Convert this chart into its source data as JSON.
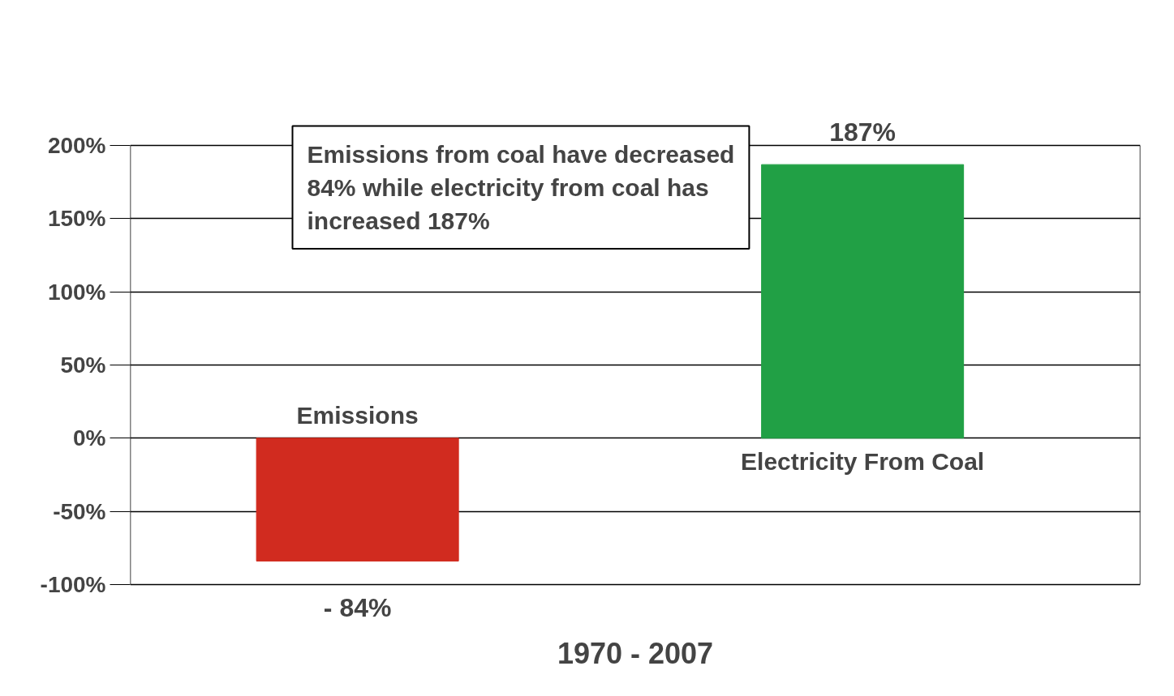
{
  "chart_data": {
    "type": "bar",
    "categories": [
      "Emissions",
      "Electricity From Coal"
    ],
    "values": [
      -84,
      187
    ],
    "colors": [
      "#d12b1f",
      "#21a045"
    ],
    "value_labels": [
      "- 84%",
      "187%"
    ],
    "xlabel": "1970 - 2007",
    "ylim": [
      -100,
      200
    ],
    "yticks": [
      {
        "value": -100,
        "label": "-100%"
      },
      {
        "value": -50,
        "label": "-50%"
      },
      {
        "value": 0,
        "label": "0%"
      },
      {
        "value": 50,
        "label": "50%"
      },
      {
        "value": 100,
        "label": "100%"
      },
      {
        "value": 150,
        "label": "150%"
      },
      {
        "value": 200,
        "label": "200%"
      }
    ],
    "grid": "y",
    "annotations": [
      "Emissions from coal have decreased 84% while electricity from coal has increased 187%"
    ]
  }
}
